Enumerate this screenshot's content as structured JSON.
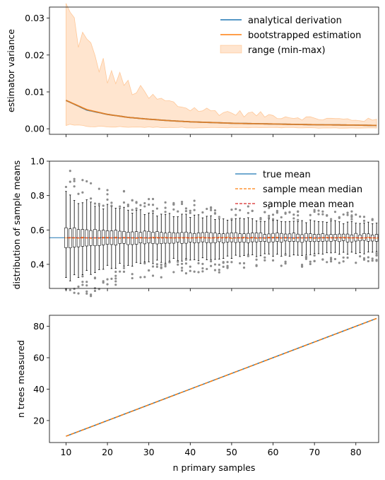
{
  "chart_data": [
    {
      "type": "area",
      "xlabel": "",
      "ylabel": "estimator variance",
      "xlim": [
        6,
        85.5
      ],
      "ylim": [
        -0.0015,
        0.033
      ],
      "xticks": [
        10,
        20,
        30,
        40,
        50,
        60,
        70,
        80
      ],
      "yticks": [
        0.0,
        0.01,
        0.02,
        0.03
      ],
      "ytick_labels": [
        "0.00",
        "0.01",
        "0.02",
        "0.03"
      ],
      "show_x_tick_labels": false,
      "legend": {
        "placement": "top-right",
        "entries": [
          {
            "label": "analytical derivation",
            "kind": "line",
            "color": "#1f77b4"
          },
          {
            "label": "bootstrapped estimation",
            "kind": "line",
            "color": "#ff7f0e"
          },
          {
            "label": "range (min-max)",
            "kind": "patch",
            "color": "#ff7f0e"
          }
        ]
      },
      "x": [
        10,
        15,
        20,
        25,
        30,
        35,
        40,
        45,
        50,
        55,
        60,
        65,
        70,
        75,
        80,
        85
      ],
      "analytical": [
        0.0077,
        0.0051,
        0.0039,
        0.0031,
        0.0026,
        0.0022,
        0.0019,
        0.0017,
        0.0015,
        0.0014,
        0.0013,
        0.0012,
        0.0011,
        0.00105,
        0.001,
        0.0009
      ],
      "bootstrapped": [
        0.0077,
        0.0052,
        0.0039,
        0.0031,
        0.0026,
        0.0022,
        0.0019,
        0.0017,
        0.0015,
        0.0014,
        0.0013,
        0.0012,
        0.0011,
        0.00105,
        0.001,
        0.0009
      ],
      "range_max": [
        0.0318,
        0.022,
        0.015,
        0.0115,
        0.0085,
        0.007,
        0.0055,
        0.0048,
        0.0043,
        0.004,
        0.0035,
        0.0032,
        0.0028,
        0.0026,
        0.0025,
        0.0023
      ],
      "range_min": [
        0.001,
        0.0007,
        0.0005,
        0.0005,
        0.0004,
        0.0004,
        0.0003,
        0.0003,
        0.0003,
        0.0003,
        0.0003,
        0.0003,
        0.0002,
        0.0002,
        0.0002,
        0.0002
      ]
    },
    {
      "type": "box",
      "xlabel": "",
      "ylabel": "distribution of sample means",
      "xlim": [
        6,
        85.5
      ],
      "ylim": [
        0.26,
        1.0
      ],
      "xticks": [
        10,
        20,
        30,
        40,
        50,
        60,
        70,
        80
      ],
      "yticks": [
        0.4,
        0.6,
        0.8,
        1.0
      ],
      "ytick_labels": [
        "0.4",
        "0.6",
        "0.8",
        "1.0"
      ],
      "show_x_tick_labels": false,
      "true_mean": 0.555,
      "legend": {
        "placement": "top-right",
        "entries": [
          {
            "label": "true mean",
            "kind": "line",
            "color": "#1f77b4"
          },
          {
            "label": "sample mean median",
            "kind": "dashed",
            "color": "#ff7f0e"
          },
          {
            "label": "sample mean mean",
            "kind": "dashed",
            "color": "#d62728"
          }
        ]
      },
      "n_from": 10,
      "n_to": 85,
      "quartile_spread_at_n10": 0.058,
      "whisker_spread_at_n10": 0.25,
      "outlier_spread_at_n10": 0.41
    },
    {
      "type": "line",
      "xlabel": "n primary samples",
      "ylabel": "n trees measured",
      "xlim": [
        6,
        85.5
      ],
      "ylim": [
        6,
        87
      ],
      "xticks": [
        10,
        20,
        30,
        40,
        50,
        60,
        70,
        80
      ],
      "xtick_labels": [
        "10",
        "20",
        "30",
        "40",
        "50",
        "60",
        "70",
        "80"
      ],
      "yticks": [
        20,
        40,
        60,
        80
      ],
      "ytick_labels": [
        "20",
        "40",
        "60",
        "80"
      ],
      "series": [
        {
          "color": "#1f77b4",
          "style": "solid",
          "x": [
            10,
            85
          ],
          "y": [
            10,
            85
          ]
        },
        {
          "color": "#ff7f0e",
          "style": "dashed",
          "x": [
            10,
            85
          ],
          "y": [
            10,
            85
          ]
        }
      ]
    }
  ]
}
